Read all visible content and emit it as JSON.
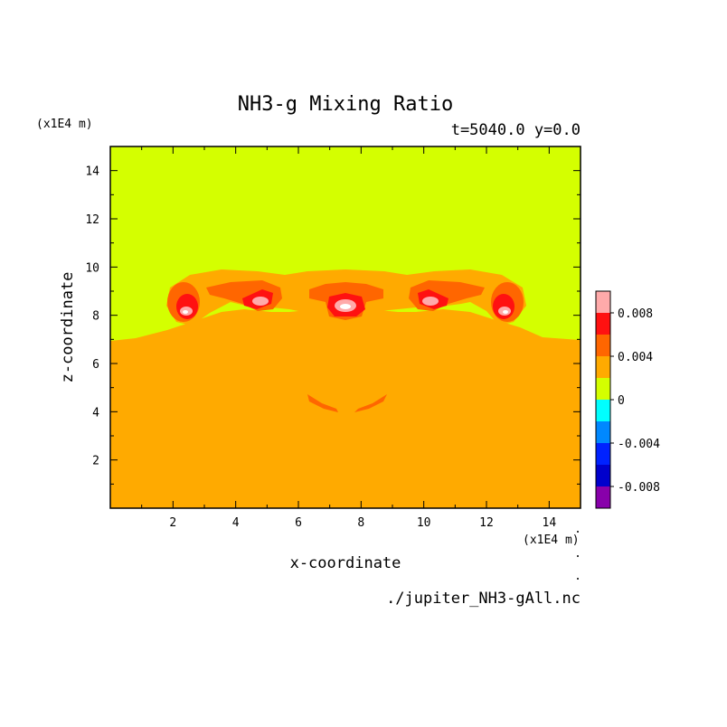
{
  "chart_data": {
    "type": "heatmap",
    "title": "NH3-g Mixing Ratio",
    "subtitle": "t=5040.0 y=0.0",
    "xlabel": "x-coordinate",
    "ylabel": "z-coordinate",
    "x_unit": "(x1E4 m)",
    "y_unit": "(x1E4 m)",
    "xlim": [
      0,
      15
    ],
    "ylim": [
      0,
      15
    ],
    "x_ticks": [
      2,
      4,
      6,
      8,
      10,
      12,
      14
    ],
    "y_ticks": [
      2,
      4,
      6,
      8,
      10,
      12,
      14
    ],
    "file": "./jupiter_NH3-gAll.nc",
    "colorbar": {
      "levels": [
        -0.01,
        -0.008,
        -0.006,
        -0.004,
        -0.002,
        0,
        0.002,
        0.004,
        0.006,
        0.008,
        0.01
      ],
      "colors": [
        "#8800aa",
        "#0000cc",
        "#0022ff",
        "#0088ff",
        "#00ffff",
        "#d4ff00",
        "#ffaa00",
        "#ff6600",
        "#ff1111",
        "#ffaaaa"
      ],
      "tick_values": [
        0.008,
        0.004,
        0,
        -0.004,
        -0.008
      ],
      "tick_labels": [
        "0.008",
        "0.004",
        "0",
        "-0.004",
        "-0.008"
      ]
    },
    "background_value": 0.003,
    "upper_layer_value": 0.001
  }
}
